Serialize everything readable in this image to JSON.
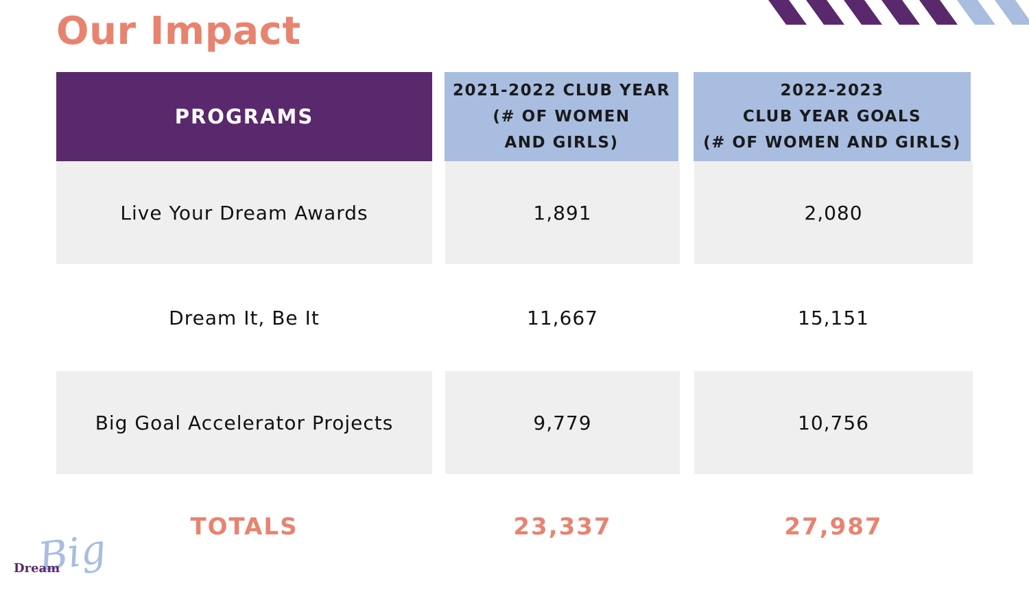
{
  "page": {
    "title": "Our Impact"
  },
  "table": {
    "headers": {
      "programs": "PROGRAMS",
      "year1": "2021-2022 CLUB YEAR\n(# OF WOMEN\nAND GIRLS)",
      "year2": "2022-2023\nCLUB YEAR GOALS\n(# OF WOMEN AND GIRLS)"
    },
    "rows": [
      {
        "program": "Live Your Dream Awards",
        "year1": "1,891",
        "year2": "2,080"
      },
      {
        "program": "Dream It, Be It",
        "year1": "11,667",
        "year2": "15,151"
      },
      {
        "program": "Big Goal Accelerator Projects",
        "year1": "9,779",
        "year2": "10,756"
      }
    ],
    "totals": {
      "label": "TOTALS",
      "year1": "23,337",
      "year2": "27,987"
    }
  },
  "logo": {
    "dream": "Dream",
    "big": "Big"
  },
  "colors": {
    "accent": "#E8836F",
    "purple": "#5A286D",
    "lightBlue": "#A8BDE0",
    "rowGray": "#EFEFEF"
  }
}
